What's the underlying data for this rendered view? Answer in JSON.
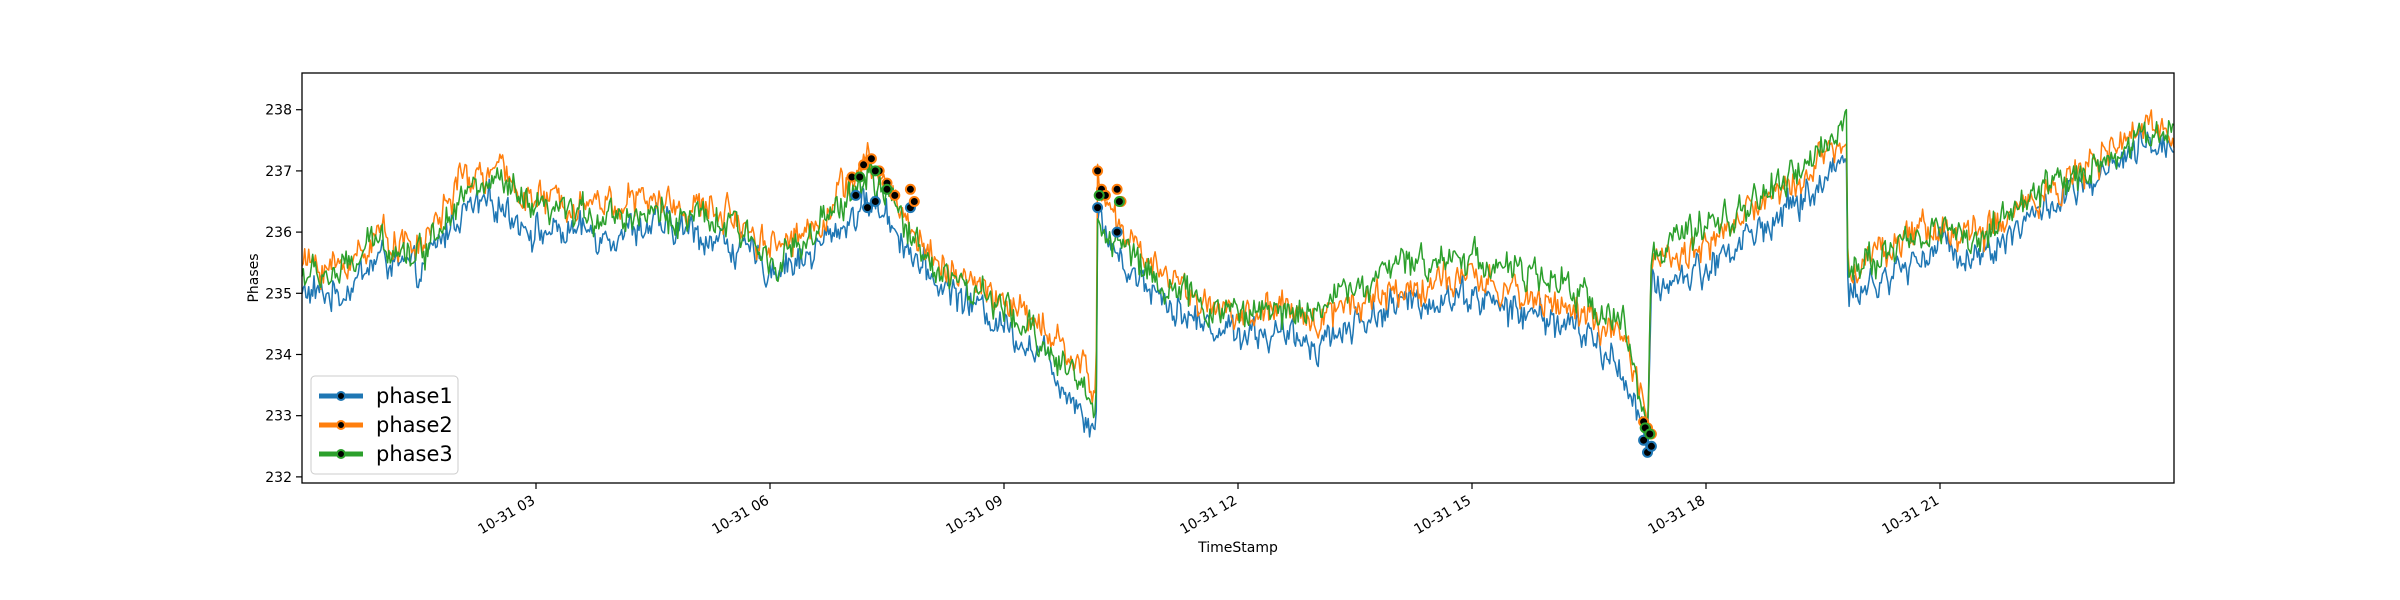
{
  "chart_data": {
    "type": "line",
    "title": "",
    "xlabel": "TimeStamp",
    "ylabel": "Phases",
    "x_range": [
      "10-31 00:00",
      "10-31 23:59"
    ],
    "ylim": [
      231.9,
      238.6
    ],
    "grid": false,
    "legend": "lower-left",
    "x_ticks": [
      {
        "hour": 3,
        "label": "10-31 03"
      },
      {
        "hour": 6,
        "label": "10-31 06"
      },
      {
        "hour": 9,
        "label": "10-31 09"
      },
      {
        "hour": 12,
        "label": "10-31 12"
      },
      {
        "hour": 15,
        "label": "10-31 15"
      },
      {
        "hour": 18,
        "label": "10-31 18"
      },
      {
        "hour": 21,
        "label": "10-31 21"
      }
    ],
    "y_ticks": [
      232,
      233,
      234,
      235,
      236,
      237,
      238
    ],
    "series": [
      {
        "name": "phase1",
        "color": "#1f77b4",
        "x_hours": [
          0,
          0.5,
          1,
          1.5,
          2,
          2.5,
          3,
          3.5,
          4,
          4.5,
          5,
          5.5,
          6,
          6.5,
          7,
          7.25,
          7.5,
          7.75,
          8,
          8.5,
          9,
          9.5,
          10,
          10.18,
          10.2,
          10.5,
          11,
          11.5,
          12,
          12.5,
          13,
          13.5,
          14,
          14.5,
          15,
          15.5,
          16,
          16.5,
          17,
          17.25,
          17.3,
          17.5,
          18,
          18.5,
          19,
          19.5,
          19.8,
          19.82,
          20,
          20.5,
          21,
          21.5,
          22,
          22.5,
          23,
          23.5,
          24
        ],
        "values": [
          235.0,
          235.0,
          235.6,
          235.3,
          236.3,
          236.5,
          236.0,
          236.0,
          236.0,
          236.1,
          236.0,
          235.8,
          235.4,
          235.6,
          236.2,
          236.5,
          236.3,
          235.8,
          235.3,
          234.9,
          234.5,
          234.0,
          233.1,
          232.8,
          236.3,
          235.5,
          235.0,
          234.5,
          234.4,
          234.3,
          234.2,
          234.5,
          234.8,
          234.9,
          235.0,
          234.7,
          234.6,
          234.3,
          233.6,
          232.4,
          235.0,
          235.2,
          235.4,
          235.9,
          236.3,
          236.8,
          237.3,
          235.2,
          235.0,
          235.4,
          235.8,
          235.6,
          236.1,
          236.5,
          236.8,
          237.3,
          237.5
        ]
      },
      {
        "name": "phase2",
        "color": "#ff7f0e",
        "x_hours": [
          0,
          0.5,
          1,
          1.5,
          2,
          2.5,
          3,
          3.5,
          4,
          4.5,
          5,
          5.5,
          6,
          6.5,
          7,
          7.25,
          7.5,
          7.75,
          8,
          8.5,
          9,
          9.5,
          10,
          10.18,
          10.2,
          10.5,
          11,
          11.5,
          12,
          12.5,
          13,
          13.5,
          14,
          14.5,
          15,
          15.5,
          16,
          16.5,
          17,
          17.25,
          17.3,
          17.5,
          18,
          18.5,
          19,
          19.5,
          19.8,
          19.82,
          20,
          20.5,
          21,
          21.5,
          22,
          22.5,
          23,
          23.5,
          24
        ],
        "values": [
          235.5,
          235.4,
          236.0,
          235.7,
          236.8,
          237.0,
          236.5,
          236.5,
          236.5,
          236.5,
          236.4,
          236.3,
          235.8,
          236.0,
          236.8,
          237.1,
          236.8,
          236.2,
          235.7,
          235.2,
          234.9,
          234.4,
          233.8,
          233.3,
          236.9,
          236.0,
          235.4,
          234.9,
          234.6,
          234.7,
          234.6,
          234.9,
          235.0,
          235.2,
          235.2,
          235.0,
          234.9,
          234.6,
          234.1,
          232.9,
          235.4,
          235.6,
          235.8,
          236.3,
          236.7,
          237.2,
          237.6,
          235.6,
          235.5,
          235.9,
          236.1,
          235.9,
          236.4,
          236.8,
          237.1,
          237.6,
          237.8
        ]
      },
      {
        "name": "phase3",
        "color": "#2ca02c",
        "x_hours": [
          0,
          0.5,
          1,
          1.5,
          2,
          2.5,
          3,
          3.5,
          4,
          4.5,
          5,
          5.5,
          6,
          6.5,
          7,
          7.25,
          7.5,
          7.75,
          8,
          8.5,
          9,
          9.5,
          10,
          10.18,
          10.2,
          10.5,
          11,
          11.5,
          12,
          12.5,
          13,
          13.5,
          14,
          14.5,
          15,
          15.5,
          16,
          16.5,
          17,
          17.25,
          17.3,
          17.5,
          18,
          18.5,
          19,
          19.5,
          19.8,
          19.82,
          20,
          20.5,
          21,
          21.5,
          22,
          22.5,
          23,
          23.5,
          24
        ],
        "values": [
          235.3,
          235.3,
          235.9,
          235.6,
          236.6,
          236.8,
          236.3,
          236.3,
          236.3,
          236.3,
          236.2,
          236.1,
          235.6,
          235.8,
          236.6,
          236.9,
          236.6,
          236.1,
          235.6,
          235.1,
          234.7,
          234.2,
          233.5,
          233.0,
          236.2,
          235.8,
          235.2,
          234.8,
          234.7,
          234.7,
          234.8,
          235.1,
          235.4,
          235.6,
          235.6,
          235.4,
          235.2,
          234.9,
          234.4,
          232.7,
          235.6,
          235.8,
          236.0,
          236.4,
          236.8,
          237.3,
          238.0,
          235.5,
          235.4,
          235.8,
          236.1,
          235.9,
          236.4,
          236.8,
          237.1,
          237.5,
          237.7
        ]
      }
    ],
    "markers": [
      {
        "series": "phase1",
        "x_hours": [
          7.1,
          7.25,
          7.35,
          7.5,
          7.8,
          10.2,
          10.45,
          17.2,
          17.25,
          17.3
        ],
        "values": [
          236.6,
          236.4,
          236.5,
          236.7,
          236.4,
          236.4,
          236.0,
          232.6,
          232.4,
          232.5
        ]
      },
      {
        "series": "phase2",
        "x_hours": [
          7.05,
          7.2,
          7.3,
          7.4,
          7.5,
          7.6,
          7.8,
          7.85,
          10.2,
          10.25,
          10.3,
          10.45,
          10.5,
          17.2,
          17.25,
          17.3
        ],
        "values": [
          236.9,
          237.1,
          237.2,
          237.0,
          236.8,
          236.6,
          236.7,
          236.5,
          237.0,
          236.7,
          236.6,
          236.7,
          236.5,
          232.9,
          232.8,
          232.7
        ]
      },
      {
        "series": "phase3",
        "x_hours": [
          7.15,
          7.35,
          7.5,
          10.22,
          10.48,
          17.22,
          17.28
        ],
        "values": [
          236.9,
          237.0,
          236.7,
          236.6,
          236.5,
          232.8,
          232.7
        ]
      }
    ]
  }
}
